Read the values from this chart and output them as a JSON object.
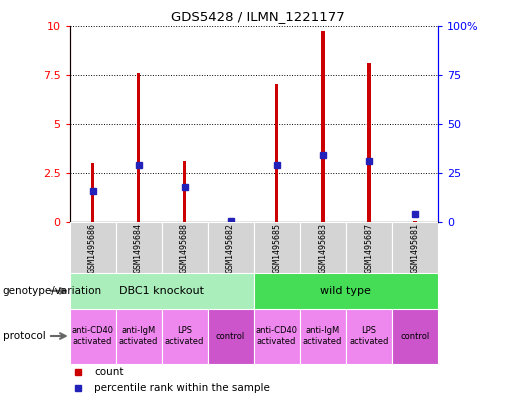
{
  "title": "GDS5428 / ILMN_1221177",
  "samples": [
    "GSM1495686",
    "GSM1495684",
    "GSM1495688",
    "GSM1495682",
    "GSM1495685",
    "GSM1495683",
    "GSM1495687",
    "GSM1495681"
  ],
  "counts": [
    3.0,
    7.6,
    3.1,
    0.05,
    7.0,
    9.7,
    8.1,
    0.05
  ],
  "percentile_ranks_scaled": [
    1.6,
    2.9,
    1.8,
    0.05,
    2.9,
    3.4,
    3.1,
    0.4
  ],
  "ylim_left": [
    0,
    10
  ],
  "ylim_right": [
    0,
    100
  ],
  "yticks_left": [
    0,
    2.5,
    5,
    7.5,
    10
  ],
  "yticks_right": [
    0,
    25,
    50,
    75,
    100
  ],
  "ytick_labels_left": [
    "0",
    "2.5",
    "5",
    "7.5",
    "10"
  ],
  "ytick_labels_right": [
    "0",
    "25",
    "50",
    "75",
    "100%"
  ],
  "bar_color": "#cc0000",
  "percentile_color": "#2222bb",
  "plot_bg": "#ffffff",
  "genotype_groups": [
    {
      "label": "DBC1 knockout",
      "start": 0,
      "end": 4,
      "color": "#aaeebb"
    },
    {
      "label": "wild type",
      "start": 4,
      "end": 8,
      "color": "#44dd55"
    }
  ],
  "protocol_groups": [
    {
      "label": "anti-CD40\nactivated",
      "start": 0,
      "end": 1,
      "color": "#ee88ee"
    },
    {
      "label": "anti-IgM\nactivated",
      "start": 1,
      "end": 2,
      "color": "#ee88ee"
    },
    {
      "label": "LPS\nactivated",
      "start": 2,
      "end": 3,
      "color": "#ee88ee"
    },
    {
      "label": "control",
      "start": 3,
      "end": 4,
      "color": "#cc55cc"
    },
    {
      "label": "anti-CD40\nactivated",
      "start": 4,
      "end": 5,
      "color": "#ee88ee"
    },
    {
      "label": "anti-IgM\nactivated",
      "start": 5,
      "end": 6,
      "color": "#ee88ee"
    },
    {
      "label": "LPS\nactivated",
      "start": 6,
      "end": 7,
      "color": "#ee88ee"
    },
    {
      "label": "control",
      "start": 7,
      "end": 8,
      "color": "#cc55cc"
    }
  ],
  "left_label_genotype": "genotype/variation",
  "left_label_protocol": "protocol",
  "bar_width": 0.08,
  "marker_size": 5
}
